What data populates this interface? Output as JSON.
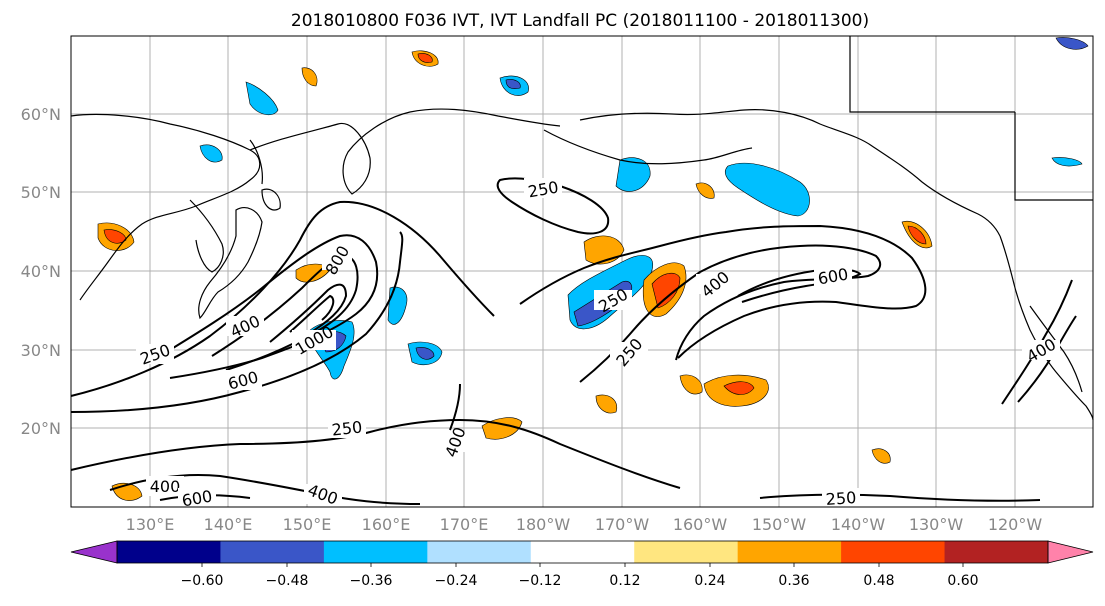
{
  "title": "2018010800 F036 IVT, IVT Landfall PC (2018011100 - 2018011300)",
  "lat_labels": [
    "60°N",
    "50°N",
    "40°N",
    "30°N",
    "20°N"
  ],
  "lon_labels": [
    "130°E",
    "140°E",
    "150°E",
    "160°E",
    "170°E",
    "180°W",
    "170°W",
    "160°W",
    "150°W",
    "140°W",
    "130°W",
    "120°W"
  ],
  "colorbar": {
    "colors": [
      "#9932cc",
      "#00008b",
      "#3a56c8",
      "#00bfff",
      "#b0e0ff",
      "#ffffff",
      "#ffe680",
      "#ffa500",
      "#ff4500",
      "#b22222",
      "#ff82aa"
    ],
    "tick_labels": [
      "−0.60",
      "−0.48",
      "−0.36",
      "−0.24",
      "−0.12",
      "0.12",
      "0.24",
      "0.36",
      "0.48",
      "0.60"
    ]
  },
  "contour_labels": [
    "250",
    "250",
    "250",
    "250",
    "250",
    "250",
    "400",
    "400",
    "400",
    "400",
    "400",
    "400",
    "600",
    "600",
    "600",
    "800",
    "1000"
  ],
  "colors": {
    "contour": "#000000",
    "coast": "#000000",
    "grid": "#b0b0b0",
    "negative_fill": "#00bfff",
    "negative_core": "#3a56c8",
    "positive_fill": "#ffa500",
    "positive_core": "#ff4500"
  }
}
